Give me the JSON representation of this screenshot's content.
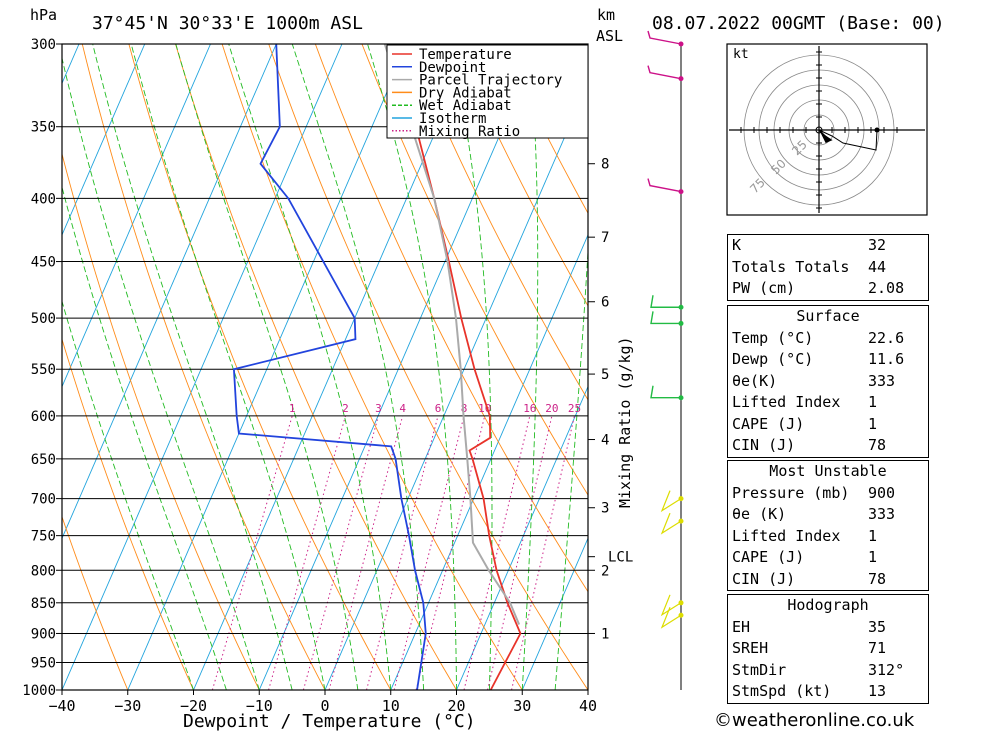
{
  "header": {
    "hpa_unit": "hPa",
    "location": "37°45'N  30°33'E  1000m  ASL",
    "km_unit": "km",
    "asl_unit": "ASL",
    "datetime": "08.07.2022  00GMT  (Base: 00)"
  },
  "chart_data": {
    "type": "skew-t",
    "xlabel": "Dewpoint / Temperature (°C)",
    "ylabel": "hPa",
    "xlim": [
      -40,
      40
    ],
    "ylim": [
      1000,
      300
    ],
    "x_ticks": [
      "−40",
      "−30",
      "−20",
      "−10",
      "0",
      "10",
      "20",
      "30",
      "40"
    ],
    "pressure_levels": [
      300,
      350,
      400,
      450,
      500,
      550,
      600,
      650,
      700,
      750,
      800,
      850,
      900,
      950,
      1000
    ],
    "km_ticks": [
      {
        "label": "8",
        "p": 375
      },
      {
        "label": "7",
        "p": 430
      },
      {
        "label": "6",
        "p": 485
      },
      {
        "label": "5",
        "p": 555
      },
      {
        "label": "4",
        "p": 627
      },
      {
        "label": "3",
        "p": 712
      },
      {
        "label": "LCL",
        "p": 780
      },
      {
        "label": "2",
        "p": 800
      },
      {
        "label": "1",
        "p": 900
      }
    ],
    "mixing_ratio_axis_label": "Mixing Ratio (g/kg)",
    "mixing_ratio_labels": [
      "1",
      "2",
      "3",
      "4",
      "6",
      "8",
      "10",
      "16",
      "20",
      "25"
    ],
    "legend": [
      {
        "name": "Temperature",
        "color": "#e8332a",
        "dash": "solid"
      },
      {
        "name": "Dewpoint",
        "color": "#2244dd",
        "dash": "solid"
      },
      {
        "name": "Parcel Trajectory",
        "color": "#aaaaaa",
        "dash": "solid"
      },
      {
        "name": "Dry Adiabat",
        "color": "#ff8c1a",
        "dash": "solid"
      },
      {
        "name": "Wet Adiabat",
        "color": "#22bb22",
        "dash": "dashed"
      },
      {
        "name": "Isotherm",
        "color": "#22a4dd",
        "dash": "solid"
      },
      {
        "name": "Mixing Ratio",
        "color": "#cc2288",
        "dash": "dotted"
      }
    ],
    "series": [
      {
        "name": "Temperature",
        "points": [
          [
            1000,
            25.2
          ],
          [
            900,
            26.0
          ],
          [
            850,
            22.0
          ],
          [
            800,
            18.2
          ],
          [
            750,
            14.8
          ],
          [
            700,
            11.5
          ],
          [
            650,
            7.2
          ],
          [
            640,
            6.2
          ],
          [
            625,
            8.5
          ],
          [
            600,
            7.0
          ],
          [
            550,
            1.6
          ],
          [
            500,
            -3.8
          ],
          [
            450,
            -9.4
          ],
          [
            400,
            -15.8
          ],
          [
            350,
            -23.3
          ],
          [
            300,
            -32.0
          ]
        ]
      },
      {
        "name": "Dewpoint",
        "points": [
          [
            1000,
            14.0
          ],
          [
            900,
            11.6
          ],
          [
            850,
            9.2
          ],
          [
            800,
            5.8
          ],
          [
            750,
            2.6
          ],
          [
            700,
            -1.0
          ],
          [
            650,
            -4.5
          ],
          [
            635,
            -6.0
          ],
          [
            620,
            -30.0
          ],
          [
            600,
            -31.5
          ],
          [
            550,
            -35.0
          ],
          [
            520,
            -18.5
          ],
          [
            500,
            -20.0
          ],
          [
            450,
            -28.5
          ],
          [
            400,
            -38.0
          ],
          [
            375,
            -44.5
          ],
          [
            350,
            -44.0
          ],
          [
            300,
            -50.0
          ]
        ]
      },
      {
        "name": "Parcel Trajectory",
        "points": [
          [
            885,
            25.2
          ],
          [
            850,
            22.4
          ],
          [
            800,
            17.0
          ],
          [
            760,
            12.8
          ],
          [
            700,
            9.5
          ],
          [
            650,
            6.4
          ],
          [
            600,
            3.0
          ],
          [
            550,
            -0.5
          ],
          [
            500,
            -4.6
          ],
          [
            450,
            -9.6
          ],
          [
            400,
            -15.8
          ],
          [
            350,
            -24.0
          ],
          [
            300,
            -33.5
          ]
        ]
      }
    ],
    "winds": [
      {
        "p": 300,
        "color": "#cc1188",
        "flags": "barb"
      },
      {
        "p": 320,
        "color": "#cc1188",
        "flags": "barb"
      },
      {
        "p": 395,
        "color": "#cc1188",
        "flags": "barb"
      },
      {
        "p": 490,
        "color": "#22bb44",
        "flags": "barb"
      },
      {
        "p": 505,
        "color": "#22bb44",
        "flags": "barb"
      },
      {
        "p": 580,
        "color": "#22bb44",
        "flags": "barb"
      },
      {
        "p": 700,
        "color": "#dddd00",
        "flags": "barb"
      },
      {
        "p": 730,
        "color": "#dddd00",
        "flags": "barb"
      },
      {
        "p": 850,
        "color": "#dddd00",
        "flags": "barb"
      },
      {
        "p": 870,
        "color": "#dddd00",
        "flags": "barb"
      }
    ],
    "hodograph": {
      "unit": "kt",
      "rings": [
        "25",
        "50",
        "75"
      ]
    }
  },
  "stats": {
    "indices": [
      {
        "label": "K",
        "value": "32"
      },
      {
        "label": "Totals Totals",
        "value": "44"
      },
      {
        "label": "PW (cm)",
        "value": "2.08"
      }
    ],
    "surface": {
      "title": "Surface",
      "rows": [
        {
          "label": "Temp (°C)",
          "value": "22.6"
        },
        {
          "label": "Dewp (°C)",
          "value": "11.6"
        },
        {
          "label": "θe(K)",
          "value": "333"
        },
        {
          "label": "Lifted Index",
          "value": "1"
        },
        {
          "label": "CAPE (J)",
          "value": "1"
        },
        {
          "label": "CIN (J)",
          "value": "78"
        }
      ]
    },
    "most_unstable": {
      "title": "Most Unstable",
      "rows": [
        {
          "label": "Pressure (mb)",
          "value": "900"
        },
        {
          "label": "θe (K)",
          "value": "333"
        },
        {
          "label": "Lifted Index",
          "value": "1"
        },
        {
          "label": "CAPE (J)",
          "value": "1"
        },
        {
          "label": "CIN (J)",
          "value": "78"
        }
      ]
    },
    "hodograph": {
      "title": "Hodograph",
      "rows": [
        {
          "label": "EH",
          "value": "35"
        },
        {
          "label": "SREH",
          "value": "71"
        },
        {
          "label": "StmDir",
          "value": "312°"
        },
        {
          "label": "StmSpd (kt)",
          "value": "13"
        }
      ]
    }
  },
  "footer": {
    "credit": "©weatheronline.co.uk"
  }
}
